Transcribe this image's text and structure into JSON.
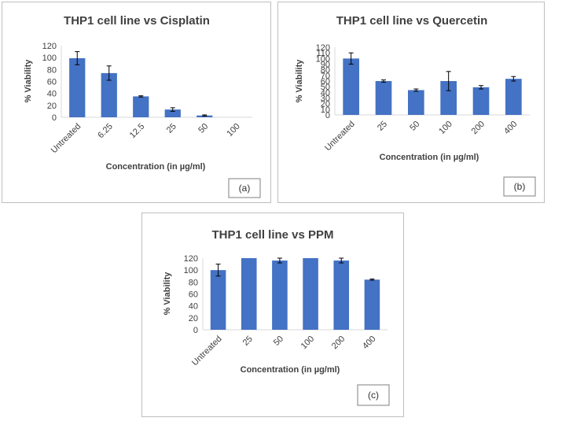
{
  "colors": {
    "bar": "#4472c4",
    "axis": "#d9d9d9",
    "text": "#404040",
    "frame": "#bfbfbf"
  },
  "chart_data": [
    {
      "type": "bar",
      "title": "THP1 cell line vs Cisplatin",
      "xlabel": "Concentration (in µg/ml)",
      "ylabel": "% Viability",
      "panel_label": "(a)",
      "categories": [
        "Untreated",
        "6.25",
        "12.5",
        "25",
        "50",
        "100"
      ],
      "values": [
        99,
        74,
        35,
        13,
        3,
        0
      ],
      "errors": [
        11,
        12,
        1,
        3,
        1,
        0
      ],
      "ylim": [
        0,
        120
      ],
      "yticks": [
        0,
        20,
        40,
        60,
        80,
        100,
        120
      ],
      "grid": false
    },
    {
      "type": "bar",
      "title": "THP1 cell line vs Quercetin",
      "xlabel": "Concentration (in µg/ml)",
      "ylabel": "% Viability",
      "panel_label": "(b)",
      "categories": [
        "Untreated",
        "25",
        "50",
        "100",
        "200",
        "400"
      ],
      "values": [
        100,
        60,
        44,
        60,
        49,
        64
      ],
      "errors": [
        10,
        2,
        2,
        17,
        3,
        4
      ],
      "ylim": [
        0,
        120
      ],
      "yticks": [
        0,
        10,
        20,
        30,
        40,
        50,
        60,
        70,
        80,
        90,
        100,
        110,
        120
      ],
      "grid": false
    },
    {
      "type": "bar",
      "title": "THP1 cell line vs PPM",
      "xlabel": "Concentration (in µg/ml)",
      "ylabel": "% Viability",
      "panel_label": "(c)",
      "categories": [
        "Untreated",
        "25",
        "50",
        "100",
        "200",
        "400"
      ],
      "values": [
        100,
        120,
        116,
        120,
        116,
        84
      ],
      "errors": [
        10,
        0,
        4,
        0,
        4,
        1
      ],
      "ylim": [
        0,
        120
      ],
      "yticks": [
        0,
        20,
        40,
        60,
        80,
        100,
        120
      ],
      "grid": false
    }
  ]
}
